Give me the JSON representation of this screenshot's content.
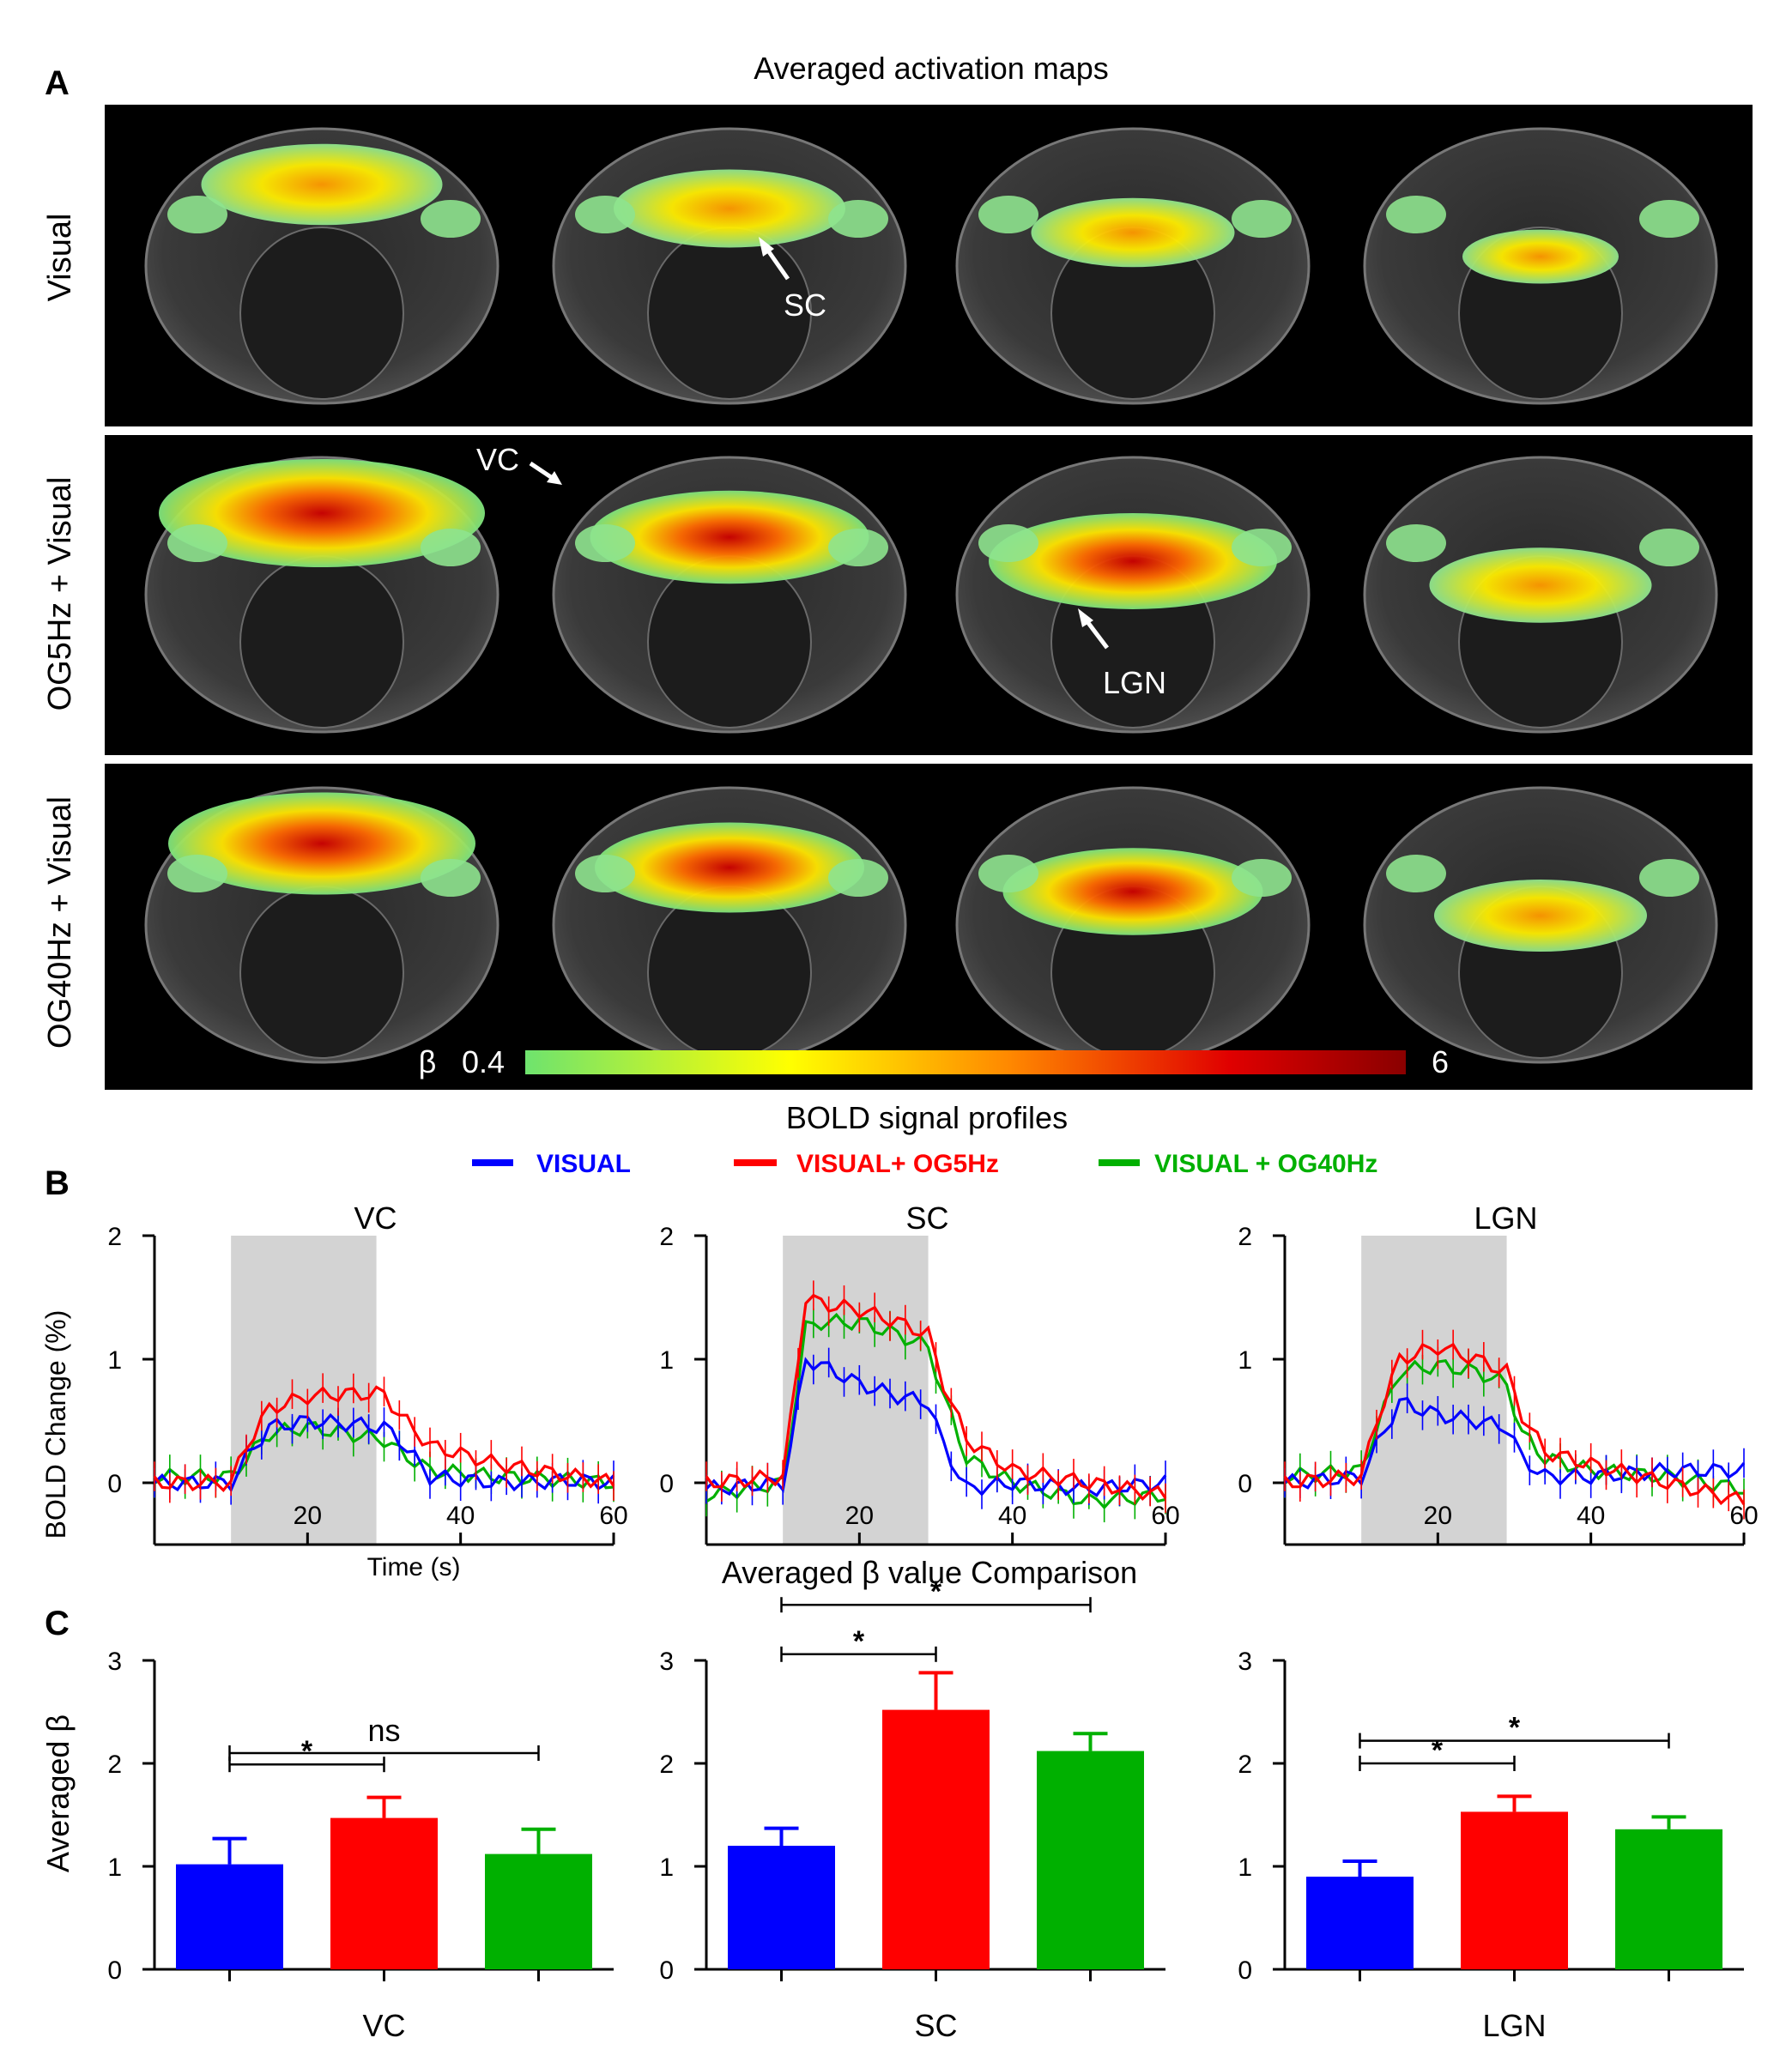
{
  "panels": {
    "a_letter": "A",
    "b_letter": "B",
    "c_letter": "C"
  },
  "maps": {
    "title": "Averaged activation maps",
    "rows": [
      "Visual",
      "OG5Hz + Visual",
      "OG40Hz + Visual"
    ],
    "annotations": {
      "sc": "SC",
      "vc": "VC",
      "lgn": "LGN"
    },
    "colorbar": {
      "symbol": "β",
      "min_label": "0.4",
      "max_label": "6",
      "colors": [
        "#6ee36e",
        "#ffff00",
        "#ff8800",
        "#e00000",
        "#8a0000"
      ]
    }
  },
  "colors": {
    "visual": "#0000ff",
    "og5": "#ff0000",
    "og40": "#00b000",
    "stim": "#d3d3d3"
  },
  "bold": {
    "title": "BOLD signal profiles",
    "legend": [
      "VISUAL",
      "VISUAL+ OG5Hz",
      "VISUAL + OG40Hz"
    ],
    "ylabel": "BOLD Change (%)",
    "xlabel": "Time (s)"
  },
  "beta": {
    "title": "Averaged β value Comparison",
    "ylabel": "Averaged β"
  },
  "chart_data": [
    {
      "type": "line",
      "title": "VC",
      "xlabel": "Time (s)",
      "ylabel": "BOLD Change (%)",
      "xlim": [
        0,
        60
      ],
      "ylim": [
        -0.5,
        2
      ],
      "xticks": [
        "20",
        "40",
        "60"
      ],
      "yticks": [
        "0",
        "1",
        "2"
      ],
      "stimulus": [
        10,
        29
      ],
      "series": [
        {
          "name": "VISUAL",
          "color": "#0000ff",
          "t": [
            0,
            10,
            12,
            15,
            20,
            25,
            30,
            32,
            36,
            45,
            55,
            60
          ],
          "y": [
            0,
            0,
            0.2,
            0.45,
            0.5,
            0.48,
            0.45,
            0.35,
            0.05,
            0,
            0.02,
            0
          ]
        },
        {
          "name": "VISUAL+ OG5Hz",
          "color": "#ff0000",
          "t": [
            0,
            10,
            12,
            15,
            20,
            25,
            30,
            32,
            36,
            45,
            55,
            60
          ],
          "y": [
            0,
            0,
            0.3,
            0.6,
            0.7,
            0.72,
            0.72,
            0.55,
            0.3,
            0.15,
            0.05,
            0
          ]
        },
        {
          "name": "VISUAL + OG40Hz",
          "color": "#00b000",
          "t": [
            0,
            10,
            12,
            15,
            20,
            25,
            30,
            32,
            36,
            45,
            55,
            60
          ],
          "y": [
            0.05,
            0.05,
            0.2,
            0.4,
            0.45,
            0.4,
            0.35,
            0.25,
            0.1,
            0.05,
            0.02,
            0
          ]
        }
      ]
    },
    {
      "type": "line",
      "title": "SC",
      "xlabel": "",
      "ylabel": "",
      "xlim": [
        0,
        60
      ],
      "ylim": [
        -0.5,
        2
      ],
      "xticks": [
        "20",
        "40",
        "60"
      ],
      "yticks": [
        "0",
        "1",
        "2"
      ],
      "stimulus": [
        10,
        29
      ],
      "series": [
        {
          "name": "VISUAL",
          "color": "#0000ff",
          "t": [
            0,
            10,
            11,
            13,
            15,
            20,
            25,
            29,
            31,
            34,
            40,
            50,
            60
          ],
          "y": [
            -0.05,
            0,
            0.3,
            1.0,
            0.95,
            0.8,
            0.7,
            0.65,
            0.3,
            -0.05,
            0,
            -0.05,
            0
          ]
        },
        {
          "name": "VISUAL+ OG5Hz",
          "color": "#ff0000",
          "t": [
            0,
            10,
            11,
            13,
            15,
            20,
            25,
            29,
            31,
            34,
            40,
            50,
            60
          ],
          "y": [
            0,
            0.05,
            0.5,
            1.5,
            1.45,
            1.4,
            1.3,
            1.2,
            0.8,
            0.35,
            0.1,
            0,
            -0.1
          ]
        },
        {
          "name": "VISUAL + OG40Hz",
          "color": "#00b000",
          "t": [
            0,
            10,
            11,
            13,
            15,
            20,
            25,
            29,
            31,
            34,
            40,
            50,
            60
          ],
          "y": [
            -0.1,
            0,
            0.4,
            1.25,
            1.3,
            1.3,
            1.2,
            1.1,
            0.7,
            0.2,
            0,
            -0.15,
            -0.1
          ]
        }
      ]
    },
    {
      "type": "line",
      "title": "LGN",
      "xlabel": "",
      "ylabel": "",
      "xlim": [
        0,
        60
      ],
      "ylim": [
        -0.5,
        2
      ],
      "xticks": [
        "20",
        "40",
        "60"
      ],
      "yticks": [
        "0",
        "1",
        "2"
      ],
      "stimulus": [
        10,
        29
      ],
      "series": [
        {
          "name": "VISUAL",
          "color": "#0000ff",
          "t": [
            0,
            10,
            12,
            15,
            20,
            25,
            29,
            31,
            34,
            40,
            50,
            60
          ],
          "y": [
            0,
            0.05,
            0.3,
            0.65,
            0.55,
            0.5,
            0.45,
            0.2,
            0.05,
            0.05,
            0.1,
            0.1
          ]
        },
        {
          "name": "VISUAL+ OG5Hz",
          "color": "#ff0000",
          "t": [
            0,
            10,
            12,
            15,
            20,
            25,
            29,
            31,
            34,
            40,
            50,
            60
          ],
          "y": [
            0,
            0.05,
            0.5,
            1.0,
            1.1,
            1.0,
            0.9,
            0.55,
            0.25,
            0.15,
            0,
            -0.15
          ]
        },
        {
          "name": "VISUAL + OG40Hz",
          "color": "#00b000",
          "t": [
            0,
            10,
            12,
            15,
            20,
            25,
            29,
            31,
            34,
            40,
            50,
            60
          ],
          "y": [
            0.05,
            0.1,
            0.45,
            0.9,
            0.95,
            0.9,
            0.8,
            0.4,
            0.2,
            0.1,
            0.05,
            -0.05
          ]
        }
      ]
    },
    {
      "type": "bar",
      "title": "VC",
      "ylabel": "Averaged β",
      "ylim": [
        0,
        3
      ],
      "yticks": [
        "0",
        "1",
        "2",
        "3"
      ],
      "categories": [
        "VISUAL",
        "VISUAL+ OG5Hz",
        "VISUAL + OG40Hz"
      ],
      "values": [
        1.02,
        1.47,
        1.12
      ],
      "errors": [
        0.25,
        0.2,
        0.24
      ],
      "comparisons": [
        {
          "a": 0,
          "b": 1,
          "label": "*"
        },
        {
          "a": 0,
          "b": 2,
          "label": "ns"
        }
      ]
    },
    {
      "type": "bar",
      "title": "SC",
      "ylabel": "",
      "ylim": [
        0,
        3
      ],
      "yticks": [
        "0",
        "1",
        "2",
        "3"
      ],
      "categories": [
        "VISUAL",
        "VISUAL+ OG5Hz",
        "VISUAL + OG40Hz"
      ],
      "values": [
        1.2,
        2.52,
        2.12
      ],
      "errors": [
        0.17,
        0.36,
        0.17
      ],
      "comparisons": [
        {
          "a": 0,
          "b": 1,
          "label": "*"
        },
        {
          "a": 0,
          "b": 2,
          "label": "*"
        }
      ]
    },
    {
      "type": "bar",
      "title": "LGN",
      "ylabel": "",
      "ylim": [
        0,
        3
      ],
      "yticks": [
        "0",
        "1",
        "2",
        "3"
      ],
      "categories": [
        "VISUAL",
        "VISUAL+ OG5Hz",
        "VISUAL + OG40Hz"
      ],
      "values": [
        0.9,
        1.53,
        1.36
      ],
      "errors": [
        0.15,
        0.15,
        0.12
      ],
      "comparisons": [
        {
          "a": 0,
          "b": 1,
          "label": "*"
        },
        {
          "a": 0,
          "b": 2,
          "label": "*"
        }
      ]
    }
  ]
}
